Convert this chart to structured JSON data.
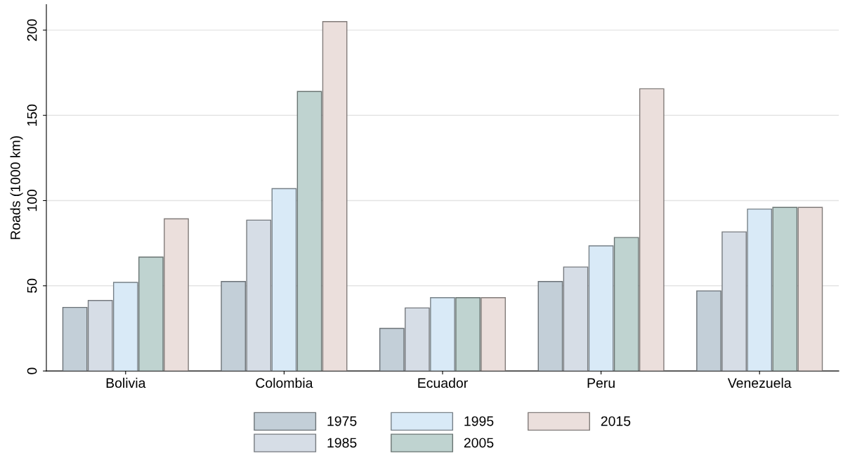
{
  "chart_data": {
    "type": "bar",
    "ylabel": "Roads (1000 km)",
    "categories": [
      "Bolivia",
      "Colombia",
      "Ecuador",
      "Peru",
      "Venezuela"
    ],
    "series": [
      {
        "name": "1975",
        "color": "#c3cfd8",
        "values": [
          37.3,
          52.5,
          25,
          52.5,
          47
        ]
      },
      {
        "name": "1985",
        "color": "#d6dde6",
        "values": [
          41.4,
          88.5,
          37,
          61,
          81.6
        ]
      },
      {
        "name": "1995",
        "color": "#d9eaf7",
        "values": [
          52,
          107,
          43,
          73.4,
          95
        ]
      },
      {
        "name": "2005",
        "color": "#bfd3d0",
        "values": [
          66.8,
          164,
          43,
          78.3,
          96
        ]
      },
      {
        "name": "2015",
        "color": "#ebdfdc",
        "values": [
          89.3,
          205,
          43,
          165.6,
          96
        ]
      }
    ],
    "ylim": [
      0,
      215
    ],
    "yticks": [
      0,
      50,
      100,
      150,
      200
    ],
    "grid": "y",
    "legend": "bottom"
  }
}
